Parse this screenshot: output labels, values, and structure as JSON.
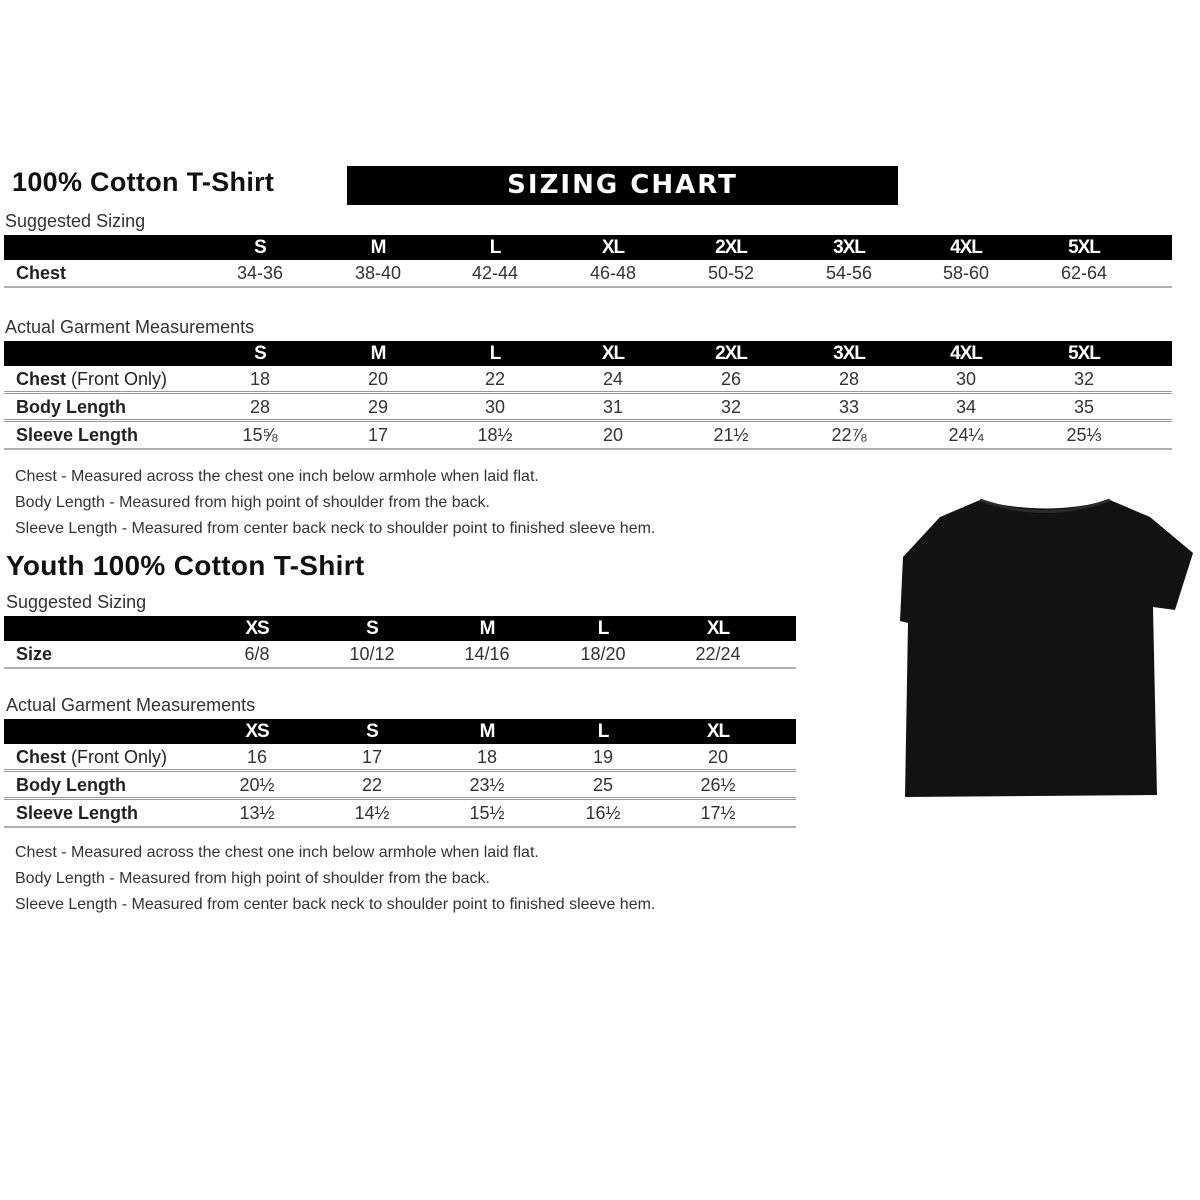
{
  "adult": {
    "title": "100% Cotton T-Shirt",
    "banner": "SIZING CHART",
    "suggested_label": "Suggested Sizing",
    "sizes": [
      "S",
      "M",
      "L",
      "XL",
      "2XL",
      "3XL",
      "4XL",
      "5XL"
    ],
    "suggested_rows": [
      {
        "label": "Chest",
        "values": [
          "34-36",
          "38-40",
          "42-44",
          "46-48",
          "50-52",
          "54-56",
          "58-60",
          "62-64"
        ]
      }
    ],
    "actual_label": "Actual Garment Measurements",
    "actual_rows": [
      {
        "label": "Chest",
        "qualifier": "(Front Only)",
        "values": [
          "18",
          "20",
          "22",
          "24",
          "26",
          "28",
          "30",
          "32"
        ]
      },
      {
        "label": "Body Length",
        "values": [
          "28",
          "29",
          "30",
          "31",
          "32",
          "33",
          "34",
          "35"
        ]
      },
      {
        "label": "Sleeve Length",
        "values": [
          "15⅝",
          "17",
          "18½",
          "20",
          "21½",
          "22⅞",
          "24¼",
          "25⅓"
        ]
      }
    ],
    "notes": [
      "Chest - Measured across the chest one inch below armhole when laid flat.",
      "Body Length - Measured from high point of shoulder from the back.",
      "Sleeve Length - Measured from center back neck to shoulder point to finished sleeve hem."
    ]
  },
  "youth": {
    "title": "Youth 100% Cotton T-Shirt",
    "suggested_label": "Suggested Sizing",
    "sizes": [
      "XS",
      "S",
      "M",
      "L",
      "XL"
    ],
    "suggested_rows": [
      {
        "label": "Size",
        "values": [
          "6/8",
          "10/12",
          "14/16",
          "18/20",
          "22/24"
        ]
      }
    ],
    "actual_label": "Actual Garment Measurements",
    "actual_rows": [
      {
        "label": "Chest",
        "qualifier": "(Front Only)",
        "values": [
          "16",
          "17",
          "18",
          "19",
          "20"
        ]
      },
      {
        "label": "Body Length",
        "values": [
          "20½",
          "22",
          "23½",
          "25",
          "26½"
        ]
      },
      {
        "label": "Sleeve Length",
        "values": [
          "13½",
          "14½",
          "15½",
          "16½",
          "17½"
        ]
      }
    ],
    "notes": [
      "Chest - Measured across the chest one inch below armhole when laid flat.",
      "Body Length - Measured from high point of shoulder from the back.",
      "Sleeve Length - Measured from center back neck to shoulder point to finished sleeve hem."
    ]
  },
  "image": {
    "shirt_color": "#121212"
  }
}
